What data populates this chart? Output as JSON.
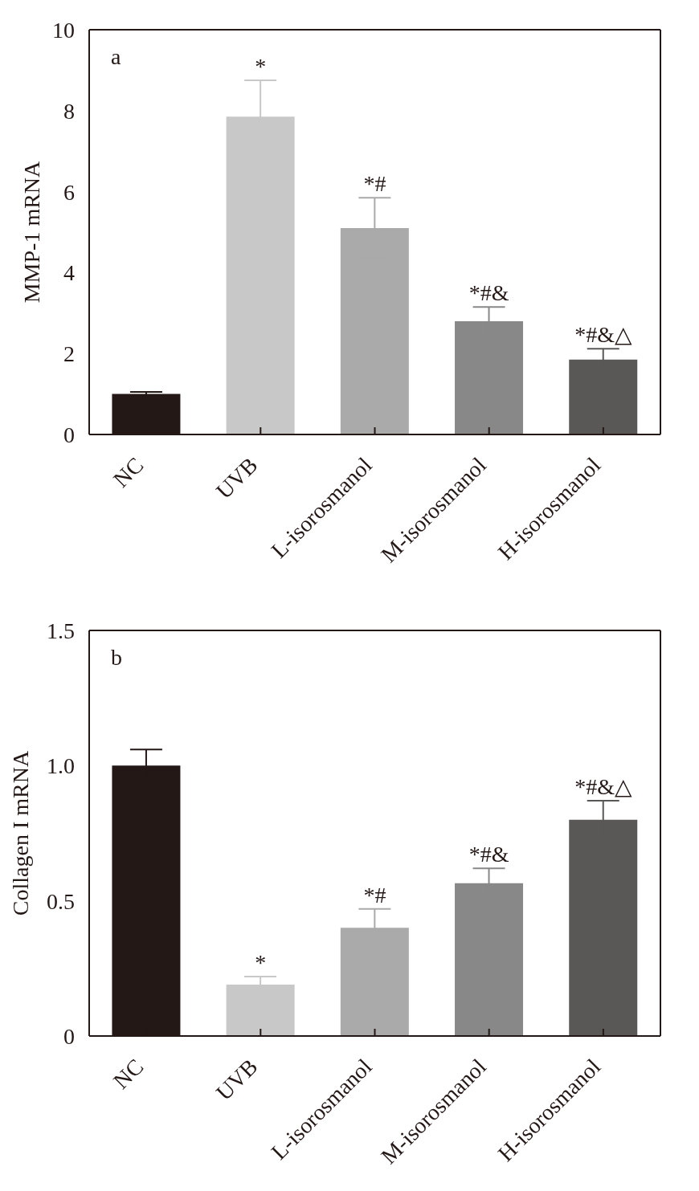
{
  "chart_data": [
    {
      "type": "bar",
      "ylabel": "MMP-1 mRNA",
      "categories": [
        "NC",
        "UVB",
        "L-isorosmanol",
        "M-isorosmanol",
        "H-isorosmanol"
      ],
      "values": [
        1.0,
        7.85,
        5.1,
        2.8,
        1.85
      ],
      "colors": [
        "#231816",
        "#c8c8c8",
        "#a9aaa9",
        "#888888",
        "#595857"
      ],
      "errors": [
        0.05,
        0.9,
        0.75,
        0.35,
        0.27
      ],
      "ylim": [
        0,
        10
      ],
      "yticks": [
        0,
        2,
        4,
        6,
        8,
        10
      ],
      "annotations": [
        "a",
        {
          "text": "*",
          "x": "UVB",
          "y": 8.75
        },
        {
          "text": "*#",
          "x": "L-isorosmanol",
          "y": 5.85
        },
        {
          "text": "*#&",
          "x": "M-isorosmanol",
          "y": 3.15
        },
        {
          "text": "*#&△",
          "x": "H-isorosmanol",
          "y": 2.12
        }
      ]
    },
    {
      "type": "bar",
      "ylabel": "Collagen I mRNA",
      "categories": [
        "NC",
        "UVB",
        "L-isorosmanol",
        "M-isorosmanol",
        "H-isorosmanol"
      ],
      "values": [
        1.0,
        0.19,
        0.4,
        0.565,
        0.8
      ],
      "colors": [
        "#231816",
        "#c8c8c8",
        "#a9aaa9",
        "#888888",
        "#595857"
      ],
      "errors": [
        0.06,
        0.03,
        0.07,
        0.055,
        0.07
      ],
      "ylim": [
        0,
        1.5
      ],
      "yticks": [
        0,
        0.5,
        {
          "value": 1,
          "label": "1.0"
        },
        1.5
      ],
      "annotations": [
        "b",
        {
          "text": "*",
          "x": "UVB",
          "y": 0.22
        },
        {
          "text": "*#",
          "x": "L-isorosmanol",
          "y": 0.47
        },
        {
          "text": "*#&",
          "x": "M-isorosmanol",
          "y": 0.62
        },
        {
          "text": "*#&△",
          "x": "H-isorosmanol",
          "y": 0.87
        }
      ]
    }
  ]
}
